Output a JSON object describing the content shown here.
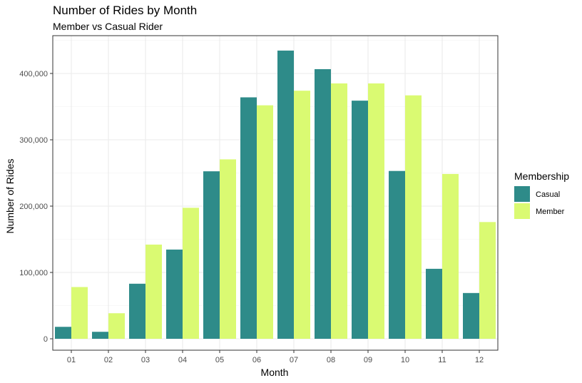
{
  "chart_data": {
    "type": "bar",
    "title": "Number of Rides by Month",
    "subtitle": "Member vs Casual Rider",
    "xlabel": "Month",
    "ylabel": "Number of Rides",
    "categories": [
      "01",
      "02",
      "03",
      "04",
      "05",
      "06",
      "07",
      "08",
      "09",
      "10",
      "11",
      "12"
    ],
    "series": [
      {
        "name": "Casual",
        "color": "#2e8b89",
        "values": [
          18000,
          10500,
          83000,
          134500,
          252500,
          364000,
          434500,
          406500,
          359000,
          253000,
          105500,
          69000
        ]
      },
      {
        "name": "Member",
        "color": "#dafa72",
        "values": [
          78000,
          38500,
          142000,
          197500,
          270500,
          352000,
          374000,
          385000,
          385000,
          367000,
          248500,
          176000
        ]
      }
    ],
    "yticks": [
      0,
      100000,
      200000,
      300000,
      400000
    ],
    "ytick_labels": [
      "0",
      "100,000",
      "200,000",
      "300,000",
      "400,000"
    ],
    "ylim": [
      0,
      435000
    ],
    "legend": {
      "title": "Membership",
      "placement": "right"
    },
    "grid": true
  }
}
